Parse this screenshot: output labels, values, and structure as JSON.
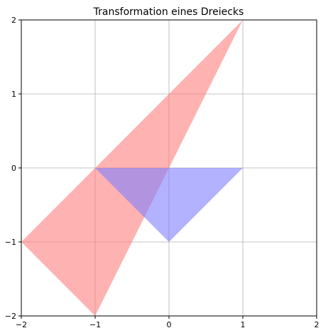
{
  "chart_data": {
    "type": "area",
    "title": "Transformation eines Dreiecks",
    "xlabel": "",
    "ylabel": "",
    "xlim": [
      -2,
      2
    ],
    "ylim": [
      -2,
      2
    ],
    "x_ticks": [
      -2,
      -1,
      0,
      1,
      2
    ],
    "y_ticks": [
      -2,
      -1,
      0,
      1,
      2
    ],
    "x_tick_labels": [
      "−2",
      "−1",
      "0",
      "1",
      "2"
    ],
    "y_tick_labels": [
      "−2",
      "−1",
      "0",
      "1",
      "2"
    ],
    "grid": true,
    "series": [
      {
        "color": "#ff7f7f",
        "opacity": 0.6,
        "points": [
          [
            -2,
            -1
          ],
          [
            -1,
            -2
          ],
          [
            1,
            2
          ]
        ]
      },
      {
        "color": "#7f7fff",
        "opacity": 0.6,
        "points": [
          [
            -1,
            0
          ],
          [
            1,
            0
          ],
          [
            0,
            -1
          ]
        ]
      }
    ]
  }
}
